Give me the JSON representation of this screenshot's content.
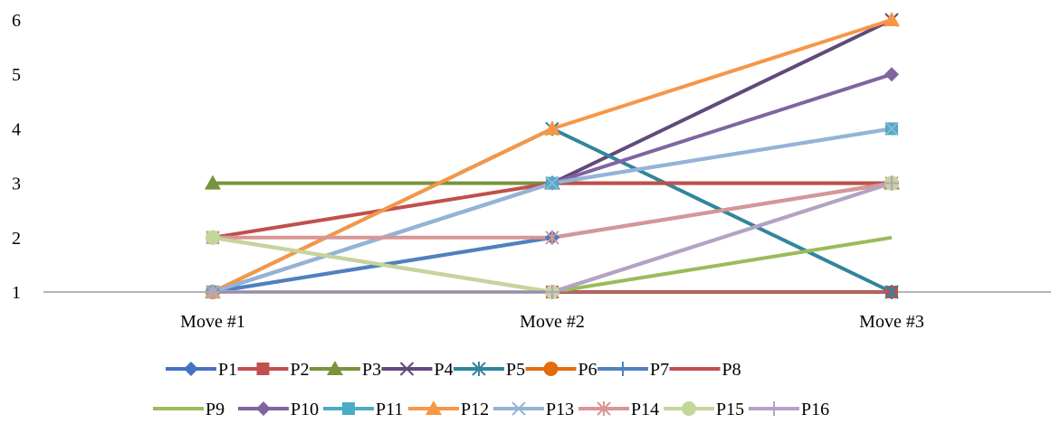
{
  "chart_data": {
    "type": "line",
    "title": "",
    "xlabel": "",
    "ylabel": "",
    "categories": [
      "Move #1",
      "Move #2",
      "Move #3"
    ],
    "ylim": [
      1,
      6
    ],
    "yticks": [
      1,
      2,
      3,
      4,
      5,
      6
    ],
    "grid": false,
    "legend_position": "bottom",
    "series": [
      {
        "name": "P1",
        "values": [
          1,
          2,
          3
        ],
        "color": "#4472C4",
        "marker": "diamond"
      },
      {
        "name": "P2",
        "values": [
          2,
          1,
          1
        ],
        "color": "#C0504D",
        "marker": "square"
      },
      {
        "name": "P3",
        "values": [
          3,
          3,
          3
        ],
        "color": "#77933C",
        "marker": "triangle"
      },
      {
        "name": "P4",
        "values": [
          1,
          3,
          6
        ],
        "color": "#604A7B",
        "marker": "x"
      },
      {
        "name": "P5",
        "values": [
          1,
          4,
          1
        ],
        "color": "#31859C",
        "marker": "asterisk"
      },
      {
        "name": "P6",
        "values": [
          1,
          1,
          3
        ],
        "color": "#E46C0A",
        "marker": "circle"
      },
      {
        "name": "P7",
        "values": [
          1,
          2,
          3
        ],
        "color": "#4F81BD",
        "marker": "plus"
      },
      {
        "name": "P8",
        "values": [
          2,
          3,
          3
        ],
        "color": "#C0504D",
        "marker": "none"
      },
      {
        "name": "P9",
        "values": [
          1,
          1,
          2
        ],
        "color": "#9BBB59",
        "marker": "none"
      },
      {
        "name": "P10",
        "values": [
          1,
          3,
          5
        ],
        "color": "#8064A2",
        "marker": "diamond"
      },
      {
        "name": "P11",
        "values": [
          1,
          3,
          4
        ],
        "color": "#4BACC6",
        "marker": "square"
      },
      {
        "name": "P12",
        "values": [
          1,
          4,
          6
        ],
        "color": "#F79646",
        "marker": "triangle"
      },
      {
        "name": "P13",
        "values": [
          1,
          3,
          4
        ],
        "color": "#95B3D7",
        "marker": "x"
      },
      {
        "name": "P14",
        "values": [
          2,
          2,
          3
        ],
        "color": "#D99694",
        "marker": "asterisk"
      },
      {
        "name": "P15",
        "values": [
          2,
          1,
          3
        ],
        "color": "#C3D69B",
        "marker": "circle"
      },
      {
        "name": "P16",
        "values": [
          1,
          1,
          3
        ],
        "color": "#B3A2C7",
        "marker": "plus"
      }
    ]
  }
}
